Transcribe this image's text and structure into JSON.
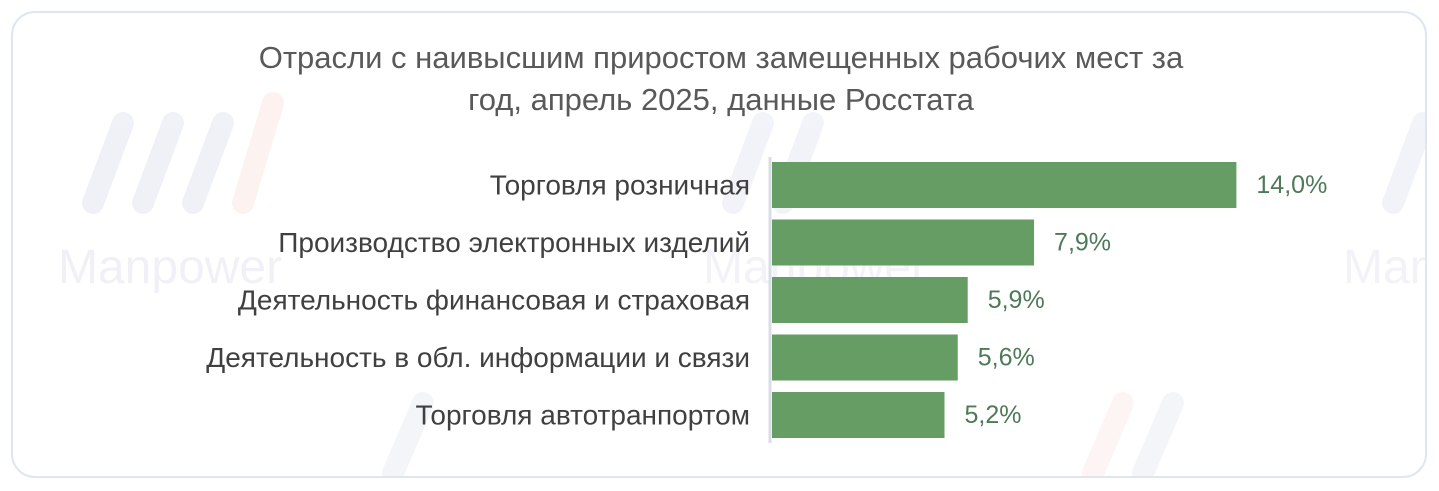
{
  "chart_data": {
    "type": "bar",
    "orientation": "horizontal",
    "title_lines": [
      "Отрасли с наивысшим приростом замещенных рабочих мест за",
      "год, апрель 2025, данные Росстата"
    ],
    "categories": [
      "Торговля розничная",
      "Производство электронных изделий",
      "Деятельность финансовая и страховая",
      "Деятельность в обл. информации и связи",
      "Торговля автотранпортом"
    ],
    "values": [
      14.0,
      7.9,
      5.9,
      5.6,
      5.2
    ],
    "value_labels": [
      "14,0%",
      "7,9%",
      "5,9%",
      "5,6%",
      "5,2%"
    ],
    "unit": "%",
    "xlim": [
      0,
      14.5
    ],
    "grid": false,
    "legend": "none",
    "bar_color": "#669d65",
    "label_color": "#4e7a59",
    "axis_color": "#d9dde6"
  },
  "watermark": {
    "text": "Manpower"
  }
}
